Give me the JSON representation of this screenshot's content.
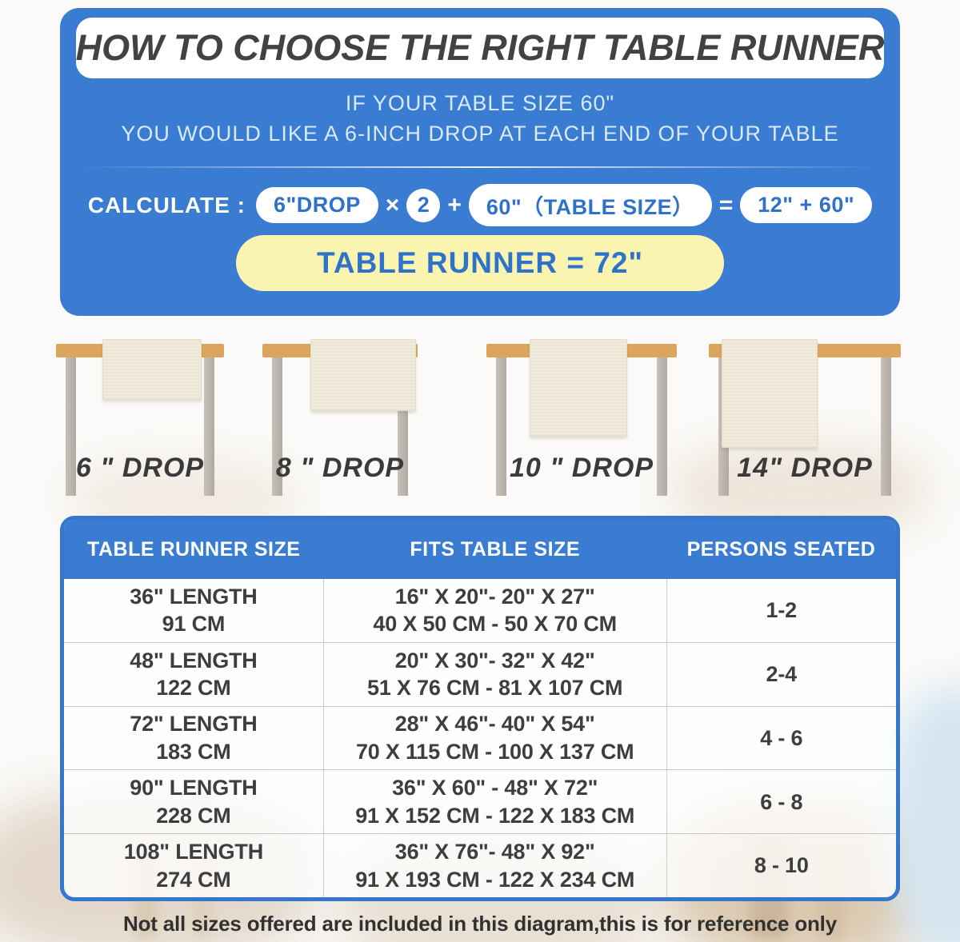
{
  "colors": {
    "panel_blue": "#3b7cd3",
    "pill_text_blue": "#2f72c9",
    "result_yellow": "#f9f5b1",
    "tabletop_tan": "#dca55e",
    "leg_gray": "#b8b1aa",
    "runner_cream": "#f1ebdc",
    "title_dark": "#424242"
  },
  "hero": {
    "title": "HOW TO CHOOSE THE RIGHT TABLE RUNNER",
    "subtitle_line1": "IF YOUR TABLE SIZE 60\"",
    "subtitle_line2": "YOU WOULD LIKE A 6-INCH DROP AT EACH END OF YOUR TABLE",
    "calc": {
      "label": "CALCULATE :",
      "drop_pill": "6\"DROP",
      "times": "×",
      "multiplier": "2",
      "plus": "+",
      "size_pill": "60\"（TABLE SIZE）",
      "equals": "=",
      "result_pill": "12\" + 60\"",
      "total_pill": "TABLE RUNNER = 72\""
    }
  },
  "drops": [
    {
      "label": "6 \" DROP"
    },
    {
      "label": "8 \" DROP"
    },
    {
      "label": "10 \" DROP"
    },
    {
      "label": "14\" DROP"
    }
  ],
  "size_table": {
    "headers": [
      "TABLE RUNNER SIZE",
      "FITS TABLE SIZE",
      "PERSONS SEATED"
    ],
    "rows": [
      {
        "size_in": "36\" LENGTH",
        "size_cm": "91 CM",
        "fits_in": "16\" X 20\"- 20\" X 27\"",
        "fits_cm": "40 X 50 CM - 50 X 70 CM",
        "persons": "1-2"
      },
      {
        "size_in": "48\" LENGTH",
        "size_cm": "122 CM",
        "fits_in": "20\" X 30\"- 32\" X 42\"",
        "fits_cm": "51 X 76 CM - 81 X 107 CM",
        "persons": "2-4"
      },
      {
        "size_in": "72\" LENGTH",
        "size_cm": "183 CM",
        "fits_in": "28\" X 46\"- 40\" X 54\"",
        "fits_cm": "70 X 115 CM - 100 X 137 CM",
        "persons": "4 - 6"
      },
      {
        "size_in": "90\" LENGTH",
        "size_cm": "228 CM",
        "fits_in": "36\" X 60\" - 48\" X 72\"",
        "fits_cm": "91 X 152 CM - 122 X 183 CM",
        "persons": "6 - 8"
      },
      {
        "size_in": "108\" LENGTH",
        "size_cm": "274 CM",
        "fits_in": "36\" X 76\"- 48\" X 92\"",
        "fits_cm": "91 X 193 CM - 122 X 234 CM",
        "persons": "8 - 10"
      }
    ]
  },
  "footnote": "Not all sizes offered are included in this diagram,this is for reference only"
}
